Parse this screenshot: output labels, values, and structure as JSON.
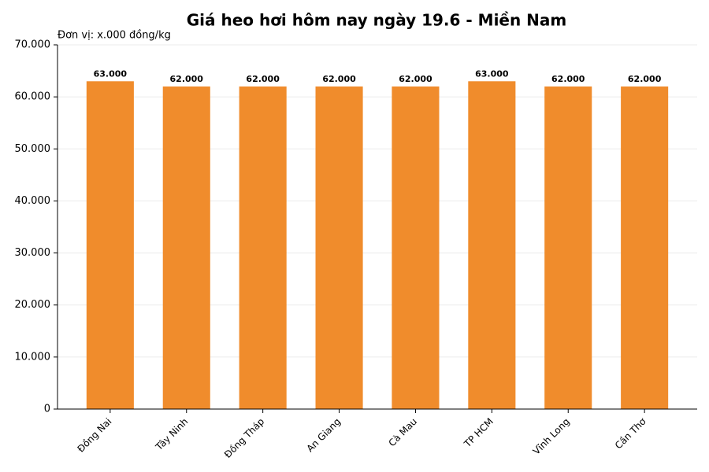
{
  "chart_data": {
    "type": "bar",
    "title": "Giá heo hơi hôm nay ngày 19.6 - Miền Nam",
    "unit_label": "Đơn vị: x.000 đồng/kg",
    "categories": [
      "Đồng Nai",
      "Tây Ninh",
      "Đồng Tháp",
      "An Giang",
      "Cà Mau",
      "TP HCM",
      "Vĩnh Long",
      "Cần Thơ"
    ],
    "values": [
      63000,
      62000,
      62000,
      62000,
      62000,
      63000,
      62000,
      62000
    ],
    "value_labels": [
      "63.000",
      "62.000",
      "62.000",
      "62.000",
      "62.000",
      "63.000",
      "62.000",
      "62.000"
    ],
    "color": "#f08c2c",
    "ylim": [
      0,
      70000
    ],
    "yticks": [
      0,
      {
        "value": 10000,
        "label": "10.000"
      },
      {
        "value": 20000,
        "label": "20.000"
      },
      {
        "value": 30000,
        "label": "30.000"
      },
      {
        "value": 40000,
        "label": "40.000"
      },
      {
        "value": 50000,
        "label": "50.000"
      },
      {
        "value": 60000,
        "label": "60.000"
      },
      {
        "value": 70000,
        "label": "70.000"
      }
    ],
    "grid": true
  }
}
